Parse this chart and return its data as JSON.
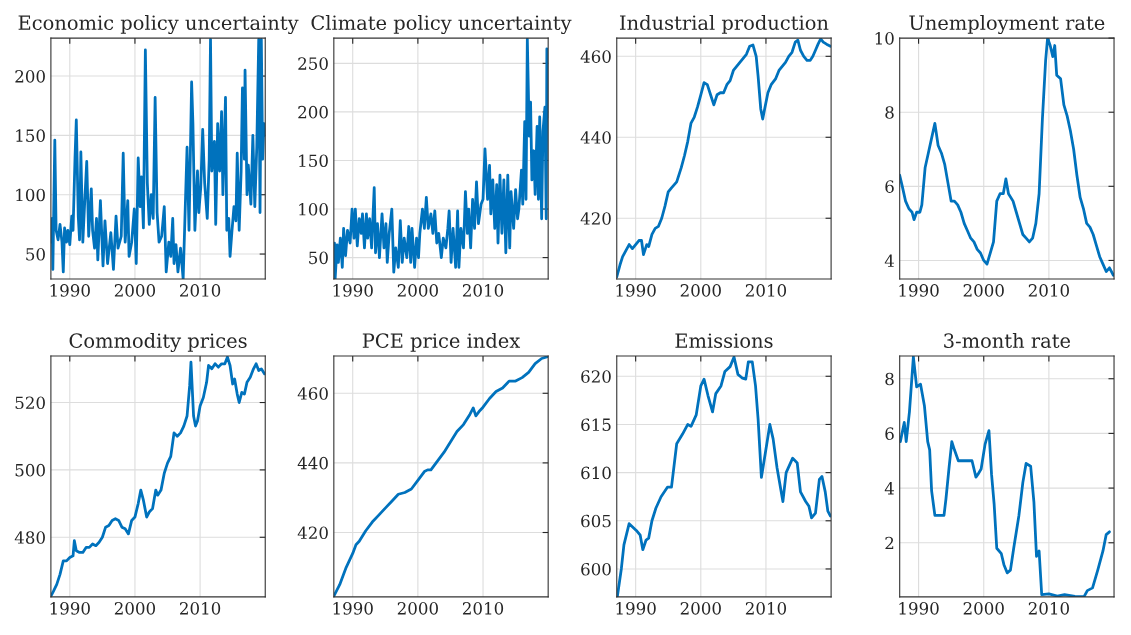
{
  "chart_data": [
    {
      "type": "line",
      "title": "Economic policy uncertainty",
      "xlim": [
        1987.1,
        2020.0
      ],
      "xticks": [
        1990,
        2000,
        2010
      ],
      "ylim": [
        29,
        232
      ],
      "yticks": [
        50,
        100,
        150,
        200
      ],
      "grid": true,
      "x": [
        1987.1,
        1987.3,
        1987.4,
        1987.7,
        1987.9,
        1988.2,
        1988.5,
        1988.8,
        1989.0,
        1989.2,
        1989.5,
        1989.7,
        1990.0,
        1990.3,
        1990.5,
        1990.8,
        1991.0,
        1991.3,
        1991.5,
        1991.7,
        1992.0,
        1992.3,
        1992.6,
        1992.9,
        1993.3,
        1993.5,
        1993.8,
        1994.1,
        1994.3,
        1994.7,
        1995.1,
        1995.4,
        1995.8,
        1996.3,
        1996.7,
        1997.1,
        1997.4,
        1997.9,
        1998.2,
        1998.5,
        1998.9,
        1999.1,
        1999.5,
        1999.9,
        2000.2,
        2000.5,
        2000.8,
        2001.0,
        2001.3,
        2001.6,
        2001.9,
        2002.2,
        2002.5,
        2002.8,
        2003.1,
        2003.4,
        2003.7,
        2004.1,
        2004.5,
        2004.8,
        2005.2,
        2005.5,
        2005.8,
        2006.0,
        2006.3,
        2006.6,
        2007.0,
        2007.4,
        2007.7,
        2008.0,
        2008.3,
        2008.7,
        2008.9,
        2009.2,
        2009.6,
        2009.8,
        2010.1,
        2010.4,
        2010.7,
        2011.1,
        2011.4,
        2011.6,
        2011.8,
        2012.2,
        2012.4,
        2012.7,
        2013.0,
        2013.3,
        2013.5,
        2013.9,
        2014.1,
        2014.4,
        2014.6,
        2014.9,
        2015.2,
        2015.5,
        2015.7,
        2016.0,
        2016.3,
        2016.5,
        2016.8,
        2016.9,
        2017.2,
        2017.4,
        2017.8,
        2018.1,
        2018.4,
        2018.7,
        2019.0,
        2019.2,
        2019.4,
        2019.6,
        2019.8,
        2020.0
      ],
      "series": [
        {
          "color": "#0072bd",
          "values": [
            60,
            80,
            37,
            146,
            70,
            62,
            75,
            60,
            35,
            72,
            60,
            70,
            58,
            82,
            70,
            131,
            163,
            82,
            62,
            136,
            60,
            95,
            128,
            65,
            105,
            70,
            55,
            80,
            45,
            95,
            40,
            78,
            42,
            68,
            37,
            82,
            55,
            65,
            135,
            60,
            95,
            48,
            60,
            88,
            42,
            131,
            90,
            115,
            72,
            222,
            110,
            75,
            100,
            80,
            182,
            85,
            60,
            65,
            90,
            35,
            60,
            48,
            80,
            42,
            58,
            35,
            55,
            29,
            85,
            140,
            70,
            195,
            160,
            70,
            120,
            85,
            106,
            155,
            110,
            80,
            130,
            231,
            120,
            145,
            75,
            160,
            120,
            170,
            100,
            182,
            70,
            80,
            48,
            70,
            90,
            78,
            135,
            70,
            120,
            190,
            130,
            205,
            100,
            125,
            92,
            150,
            90,
            140,
            231,
            85,
            231,
            130,
            160,
            150
          ]
        }
      ]
    },
    {
      "type": "line",
      "title": "Climate policy uncertainty",
      "xlim": [
        1987.1,
        2020.0
      ],
      "xticks": [
        1990,
        2000,
        2010
      ],
      "ylim": [
        28,
        276
      ],
      "yticks": [
        50,
        100,
        150,
        200,
        250
      ],
      "grid": true,
      "x": [
        1987.2,
        1987.3,
        1987.6,
        1987.8,
        1988.1,
        1988.4,
        1988.6,
        1988.9,
        1989.2,
        1989.6,
        1989.9,
        1990.2,
        1990.4,
        1990.7,
        1991.0,
        1991.3,
        1991.5,
        1991.8,
        1992.1,
        1992.3,
        1992.6,
        1992.9,
        1993.3,
        1993.5,
        1993.8,
        1994.1,
        1994.5,
        1994.8,
        1995.1,
        1995.3,
        1995.6,
        1996.0,
        1996.3,
        1996.6,
        1997.0,
        1997.3,
        1997.6,
        1997.9,
        1998.3,
        1998.6,
        1998.9,
        1999.1,
        1999.5,
        1999.8,
        2000.1,
        2000.3,
        2000.7,
        2001.0,
        2001.3,
        2001.6,
        2002.0,
        2002.3,
        2002.6,
        2002.9,
        2003.2,
        2003.6,
        2003.9,
        2004.3,
        2004.6,
        2004.8,
        2005.1,
        2005.4,
        2005.8,
        2006.1,
        2006.3,
        2006.6,
        2007.0,
        2007.3,
        2007.6,
        2007.8,
        2008.1,
        2008.4,
        2008.7,
        2009.0,
        2009.3,
        2009.7,
        2010.0,
        2010.3,
        2010.7,
        2011.0,
        2011.2,
        2011.5,
        2011.8,
        2012.1,
        2012.3,
        2012.6,
        2012.9,
        2013.2,
        2013.5,
        2013.8,
        2014.1,
        2014.3,
        2014.7,
        2015.0,
        2015.3,
        2015.5,
        2015.9,
        2016.1,
        2016.4,
        2016.6,
        2016.8,
        2017.1,
        2017.3,
        2017.5,
        2017.8,
        2018.0,
        2018.3,
        2018.5,
        2018.7,
        2019.0,
        2019.2,
        2019.5,
        2019.7,
        2019.8,
        2020.0
      ],
      "series": [
        {
          "color": "#0072bd",
          "values": [
            65,
            28,
            63,
            45,
            70,
            40,
            80,
            52,
            78,
            65,
            100,
            70,
            100,
            62,
            90,
            75,
            95,
            60,
            95,
            70,
            90,
            60,
            122,
            55,
            85,
            50,
            95,
            60,
            85,
            45,
            75,
            100,
            35,
            60,
            40,
            88,
            45,
            70,
            50,
            82,
            45,
            80,
            40,
            70,
            50,
            75,
            100,
            80,
            112,
            80,
            95,
            75,
            98,
            65,
            75,
            50,
            70,
            60,
            80,
            98,
            45,
            80,
            40,
            98,
            40,
            80,
            60,
            118,
            75,
            100,
            60,
            110,
            80,
            128,
            85,
            105,
            110,
            162,
            110,
            145,
            95,
            130,
            80,
            125,
            65,
            135,
            75,
            130,
            55,
            135,
            60,
            118,
            80,
            120,
            90,
            100,
            140,
            105,
            190,
            110,
            275,
            175,
            210,
            130,
            160,
            115,
            185,
            110,
            195,
            90,
            180,
            205,
            90,
            265,
            195
          ]
        }
      ]
    },
    {
      "type": "line",
      "title": "Industrial production",
      "xlim": [
        1987.1,
        2020.0
      ],
      "xticks": [
        1990,
        2000,
        2010
      ],
      "ylim": [
        405,
        464.5
      ],
      "yticks": [
        420,
        440,
        460
      ],
      "grid": true,
      "x": [
        1987.1,
        1987.6,
        1988.0,
        1988.5,
        1989.0,
        1989.5,
        1990.0,
        1990.5,
        1990.9,
        1991.2,
        1991.7,
        1992.0,
        1992.5,
        1993.0,
        1993.5,
        1994.0,
        1994.5,
        1995.0,
        1995.5,
        1996.3,
        1997.0,
        1997.5,
        1998.0,
        1998.5,
        1999.0,
        1999.5,
        2000.0,
        2000.5,
        2001.0,
        2001.5,
        2002.0,
        2002.5,
        2003.0,
        2003.5,
        2004.0,
        2004.5,
        2005.0,
        2005.5,
        2006.0,
        2006.5,
        2007.0,
        2007.5,
        2008.0,
        2008.5,
        2008.8,
        2009.2,
        2009.5,
        2009.8,
        2010.3,
        2010.8,
        2011.5,
        2012.0,
        2012.5,
        2013.0,
        2013.5,
        2014.0,
        2014.5,
        2014.9,
        2015.3,
        2015.8,
        2016.3,
        2016.8,
        2017.2,
        2017.6,
        2018.0,
        2018.4,
        2018.8,
        2019.3,
        2019.9
      ],
      "series": [
        {
          "color": "#0072bd",
          "values": [
            405.5,
            408.5,
            410.5,
            412,
            413.5,
            412.5,
            413.5,
            414.5,
            414.5,
            411,
            413.5,
            413,
            416,
            417.5,
            418,
            420,
            423,
            426.5,
            427.5,
            429,
            432.5,
            435.5,
            439,
            443.5,
            445,
            447.5,
            450.5,
            453.5,
            453,
            450.5,
            448,
            450.5,
            451,
            451,
            453,
            454,
            456.5,
            457.5,
            458.5,
            459.5,
            460.5,
            462.5,
            462.8,
            460,
            455,
            447,
            444.5,
            447,
            451,
            453,
            454.5,
            456.5,
            457.5,
            458.5,
            460,
            461,
            463.5,
            464,
            461.5,
            460,
            459,
            459,
            460,
            461.5,
            463,
            464.3,
            463.5,
            463,
            462.5
          ]
        }
      ]
    },
    {
      "type": "line",
      "title": "Unemployment rate",
      "xlim": [
        1987.1,
        2020.0
      ],
      "xticks": [
        1990,
        2000,
        2010
      ],
      "ylim": [
        3.5,
        10
      ],
      "yticks": [
        4,
        6,
        8,
        10
      ],
      "grid": true,
      "x": [
        1987.1,
        1987.5,
        1988.0,
        1988.5,
        1989.0,
        1989.3,
        1989.7,
        1990.2,
        1990.5,
        1991.0,
        1991.5,
        1992.0,
        1992.5,
        1993.0,
        1993.5,
        1994.0,
        1994.5,
        1995.0,
        1995.5,
        1996.0,
        1996.5,
        1997.0,
        1997.5,
        1998.0,
        1998.5,
        1999.0,
        1999.5,
        2000.0,
        2000.5,
        2001.0,
        2001.5,
        2002.0,
        2002.5,
        2003.0,
        2003.4,
        2003.8,
        2004.5,
        2005.0,
        2005.5,
        2006.0,
        2006.5,
        2007.0,
        2007.5,
        2008.0,
        2008.5,
        2009.0,
        2009.5,
        2009.8,
        2010.2,
        2010.6,
        2010.9,
        2011.2,
        2011.8,
        2012.3,
        2012.8,
        2013.3,
        2013.8,
        2014.3,
        2014.8,
        2015.3,
        2015.8,
        2016.3,
        2016.8,
        2017.3,
        2017.8,
        2018.3,
        2018.8,
        2019.3,
        2019.9
      ],
      "series": [
        {
          "color": "#0072bd",
          "values": [
            6.3,
            6.0,
            5.6,
            5.4,
            5.3,
            5.1,
            5.3,
            5.3,
            5.5,
            6.5,
            6.9,
            7.3,
            7.7,
            7.1,
            6.9,
            6.6,
            6.1,
            5.6,
            5.6,
            5.5,
            5.3,
            5.0,
            4.8,
            4.6,
            4.5,
            4.3,
            4.2,
            4.0,
            3.9,
            4.2,
            4.5,
            5.6,
            5.8,
            5.8,
            6.2,
            5.8,
            5.6,
            5.3,
            5.0,
            4.7,
            4.6,
            4.5,
            4.6,
            5.0,
            5.8,
            7.8,
            9.4,
            10.0,
            9.8,
            9.5,
            9.8,
            9.0,
            8.9,
            8.2,
            7.9,
            7.5,
            7.0,
            6.3,
            5.7,
            5.4,
            5.0,
            4.9,
            4.7,
            4.4,
            4.1,
            3.9,
            3.7,
            3.8,
            3.6
          ]
        }
      ]
    },
    {
      "type": "line",
      "title": "Commodity prices",
      "xlim": [
        1987.1,
        2020.0
      ],
      "xticks": [
        1990,
        2000,
        2010
      ],
      "ylim": [
        462.3,
        533.8
      ],
      "yticks": [
        480,
        500,
        520
      ],
      "grid": true,
      "x": [
        1987.1,
        1987.5,
        1988.0,
        1988.5,
        1989.0,
        1989.5,
        1990.0,
        1990.5,
        1990.7,
        1991.0,
        1991.5,
        1992.0,
        1992.5,
        1993.0,
        1993.5,
        1994.0,
        1994.5,
        1995.0,
        1995.5,
        1996.0,
        1996.5,
        1997.0,
        1997.5,
        1998.0,
        1998.5,
        1999.0,
        1999.5,
        2000.0,
        2000.5,
        2000.9,
        2001.3,
        2001.8,
        2002.2,
        2002.7,
        2003.2,
        2003.5,
        2004.0,
        2004.5,
        2005.0,
        2005.5,
        2006.0,
        2006.5,
        2007.0,
        2007.5,
        2008.0,
        2008.4,
        2008.6,
        2009.0,
        2009.3,
        2009.6,
        2010.0,
        2010.5,
        2011.0,
        2011.3,
        2011.8,
        2012.3,
        2012.8,
        2013.3,
        2013.8,
        2014.2,
        2014.6,
        2015.0,
        2015.3,
        2015.7,
        2016.0,
        2016.4,
        2016.8,
        2017.2,
        2017.7,
        2018.2,
        2018.6,
        2019.0,
        2019.4,
        2019.9
      ],
      "series": [
        {
          "color": "#0072bd",
          "values": [
            462.5,
            464,
            466,
            469,
            473,
            473,
            474,
            474.5,
            479,
            476,
            475.5,
            475.5,
            477,
            477,
            478,
            477.5,
            478.5,
            480,
            483,
            483.5,
            485,
            485.5,
            485,
            483,
            482.5,
            481,
            485,
            486,
            490,
            494,
            491,
            486,
            487.5,
            488.5,
            494,
            492.5,
            494,
            499,
            502,
            504,
            511,
            510,
            511,
            513,
            516,
            525,
            532,
            516,
            513,
            514.5,
            519,
            521.5,
            526,
            531,
            530,
            531.5,
            530.5,
            531.5,
            531.5,
            533.5,
            531,
            525.5,
            527,
            522.5,
            520,
            523,
            522.5,
            526,
            527.5,
            530,
            531.5,
            529.5,
            530,
            528.5
          ]
        }
      ]
    },
    {
      "type": "line",
      "title": "PCE price index",
      "xlim": [
        1987.1,
        2020.0
      ],
      "xticks": [
        1990,
        2000,
        2010
      ],
      "ylim": [
        401.5,
        470.7
      ],
      "yticks": [
        420,
        440,
        460
      ],
      "grid": true,
      "x": [
        1987.1,
        1988.0,
        1989.0,
        1990.0,
        1990.5,
        1991.0,
        1992.0,
        1993.0,
        1994.0,
        1995.0,
        1996.0,
        1997.0,
        1998.0,
        1999.0,
        2000.0,
        2001.0,
        2001.5,
        2002.0,
        2003.0,
        2004.0,
        2005.0,
        2006.0,
        2007.0,
        2008.0,
        2008.5,
        2008.9,
        2009.5,
        2010.0,
        2011.0,
        2012.0,
        2013.0,
        2014.0,
        2015.0,
        2016.0,
        2017.0,
        2018.0,
        2019.0,
        2019.9
      ],
      "series": [
        {
          "color": "#0072bd",
          "values": [
            401.7,
            405,
            410,
            414,
            416.5,
            417.5,
            420.5,
            423,
            425,
            427,
            429,
            431,
            431.5,
            432.5,
            435,
            437.5,
            438,
            438,
            440.5,
            443,
            446,
            449,
            451,
            454,
            455.8,
            453.5,
            455,
            456,
            458.5,
            460.5,
            461.5,
            463.5,
            463.5,
            464.5,
            466,
            468.5,
            470,
            470.5
          ]
        }
      ]
    },
    {
      "type": "line",
      "title": "Emissions",
      "xlim": [
        1987.1,
        2020.0
      ],
      "xticks": [
        1990,
        2000,
        2010
      ],
      "ylim": [
        597.1,
        622.1
      ],
      "yticks": [
        600,
        605,
        610,
        615,
        620
      ],
      "grid": true,
      "x": [
        1987.2,
        1987.8,
        1988.2,
        1989.0,
        1990.1,
        1990.7,
        1991.1,
        1991.6,
        1992.0,
        1992.5,
        1993.1,
        1993.9,
        1994.9,
        1995.5,
        1996.3,
        1997.2,
        1998.0,
        1998.5,
        1999.3,
        2000.0,
        2000.5,
        2001.1,
        2001.8,
        2002.3,
        2003.1,
        2003.7,
        2004.5,
        2005.1,
        2005.7,
        2006.4,
        2006.9,
        2007.3,
        2007.9,
        2008.4,
        2008.8,
        2009.3,
        2009.9,
        2010.6,
        2011.1,
        2011.7,
        2012.6,
        2013.1,
        2014.1,
        2014.8,
        2015.3,
        2016.1,
        2016.6,
        2017.0,
        2017.6,
        2018.2,
        2018.6,
        2019.1,
        2019.5,
        2019.9
      ],
      "series": [
        {
          "color": "#0072bd",
          "values": [
            597.2,
            600,
            602.5,
            604.7,
            604,
            603.5,
            602,
            603,
            603.2,
            605,
            606.3,
            607.5,
            608.5,
            608.5,
            613,
            614,
            615,
            614.8,
            616,
            619,
            619.7,
            618,
            616.3,
            618.2,
            619,
            620.5,
            621,
            622,
            620.2,
            619.8,
            619.7,
            621.5,
            621.5,
            619,
            615.5,
            609.5,
            612,
            615,
            613.5,
            610.5,
            607,
            610,
            611.5,
            611,
            608,
            607,
            606.5,
            605.3,
            605.8,
            609.3,
            609.6,
            608,
            606,
            605.5
          ]
        }
      ]
    },
    {
      "type": "line",
      "title": "3-month rate",
      "xlim": [
        1987.1,
        2020.0
      ],
      "xticks": [
        1990,
        2000,
        2010
      ],
      "ylim": [
        0.02,
        8.83
      ],
      "yticks": [
        2,
        4,
        6,
        8
      ],
      "grid": true,
      "x": [
        1987.2,
        1987.8,
        1988.1,
        1988.6,
        1989.2,
        1989.7,
        1990.3,
        1990.9,
        1991.4,
        1991.7,
        1992.0,
        1992.5,
        1993.1,
        1993.9,
        1994.2,
        1994.7,
        1995.1,
        1995.5,
        1996.1,
        1996.6,
        1997.4,
        1998.2,
        1998.8,
        1999.1,
        1999.6,
        2000.2,
        2000.8,
        2001.2,
        2001.6,
        2002.0,
        2002.7,
        2003.1,
        2003.6,
        2004.1,
        2004.6,
        2005.4,
        2006.0,
        2006.5,
        2007.2,
        2007.7,
        2008.1,
        2008.5,
        2008.9,
        2010.0,
        2011.3,
        2012.4,
        2014.0,
        2015.4,
        2015.9,
        2016.7,
        2017.5,
        2018.3,
        2018.8,
        2019.3
      ],
      "series": [
        {
          "color": "#0072bd",
          "values": [
            5.7,
            6.4,
            5.7,
            6.8,
            8.8,
            7.7,
            7.8,
            7.0,
            5.7,
            5.4,
            3.9,
            3.0,
            3.0,
            3.0,
            3.6,
            4.8,
            5.7,
            5.4,
            5.0,
            5.0,
            5.0,
            5.0,
            4.4,
            4.5,
            4.7,
            5.6,
            6.1,
            4.5,
            3.4,
            1.8,
            1.6,
            1.2,
            0.9,
            1.0,
            1.8,
            3.0,
            4.2,
            4.9,
            4.8,
            3.5,
            1.5,
            1.7,
            0.1,
            0.13,
            0.05,
            0.1,
            0.04,
            0.03,
            0.25,
            0.35,
            1.0,
            1.7,
            2.3,
            2.4
          ]
        }
      ]
    }
  ]
}
